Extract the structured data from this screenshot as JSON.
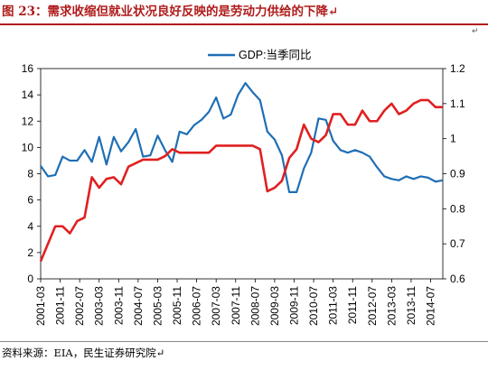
{
  "figure": {
    "title": "图 23：需求收缩但就业状况良好反映的是劳动力供给的下降↵",
    "corner_mark": "↵",
    "source_note": "资料来源：EIA，民生证券研究院↵"
  },
  "chart_data": {
    "type": "line",
    "title": "",
    "legend_position": "top-center",
    "grid": false,
    "x_tick_labels": [
      "2001-03",
      "2001-11",
      "2002-07",
      "2003-03",
      "2003-11",
      "2004-07",
      "2005-03",
      "2005-11",
      "2006-07",
      "2007-03",
      "2007-11",
      "2008-07",
      "2009-03",
      "2009-11",
      "2010-07",
      "2011-03",
      "2011-11",
      "2012-07",
      "2013-03",
      "2013-11",
      "2014-07"
    ],
    "x_tick_labels_shown": [
      "2001-03",
      "2001-11",
      "2002-07",
      "2003-03",
      "2003-11",
      "2004-07",
      "2005-03",
      "2005-11",
      "2006-07",
      "2007-03",
      "2007-11",
      "2008-07",
      "2009-03",
      "2009-11",
      "2010-07",
      "2011-03",
      "2011-11",
      "2012-07",
      "2013-03",
      "2013-11",
      "2014-07"
    ],
    "x": [
      "2001Q1",
      "2001Q2",
      "2001Q3",
      "2001Q4",
      "2002Q1",
      "2002Q2",
      "2002Q3",
      "2002Q4",
      "2003Q1",
      "2003Q2",
      "2003Q3",
      "2003Q4",
      "2004Q1",
      "2004Q2",
      "2004Q3",
      "2004Q4",
      "2005Q1",
      "2005Q2",
      "2005Q3",
      "2005Q4",
      "2006Q1",
      "2006Q2",
      "2006Q3",
      "2006Q4",
      "2007Q1",
      "2007Q2",
      "2007Q3",
      "2007Q4",
      "2008Q1",
      "2008Q2",
      "2008Q3",
      "2008Q4",
      "2009Q1",
      "2009Q2",
      "2009Q3",
      "2009Q4",
      "2010Q1",
      "2010Q2",
      "2010Q3",
      "2010Q4",
      "2011Q1",
      "2011Q2",
      "2011Q3",
      "2011Q4",
      "2012Q1",
      "2012Q2",
      "2012Q3",
      "2012Q4",
      "2013Q1",
      "2013Q2",
      "2013Q3",
      "2013Q4",
      "2014Q1",
      "2014Q2",
      "2014Q3",
      "2014Q4"
    ],
    "y_left": {
      "lim": [
        0,
        16
      ],
      "ticks": [
        0,
        2,
        4,
        6,
        8,
        10,
        12,
        14,
        16
      ]
    },
    "y_right": {
      "lim": [
        0.6,
        1.2
      ],
      "ticks": [
        "0.6",
        "0.7",
        "0.8",
        "0.9",
        "1",
        "1.1",
        "1.2"
      ],
      "tick_values": [
        0.6,
        0.7,
        0.8,
        0.9,
        1.0,
        1.1,
        1.2
      ]
    },
    "series": [
      {
        "name": "GDP:当季同比",
        "axis": "left",
        "color": "#1f6fb5",
        "values": [
          8.6,
          7.8,
          7.9,
          9.3,
          9.0,
          9.0,
          9.8,
          8.9,
          10.8,
          8.7,
          10.8,
          9.7,
          10.4,
          11.4,
          9.3,
          9.4,
          10.9,
          9.8,
          8.9,
          11.2,
          11.0,
          11.7,
          12.1,
          12.7,
          13.8,
          12.2,
          12.5,
          14.0,
          14.9,
          14.2,
          13.6,
          11.2,
          10.6,
          9.4,
          6.6,
          6.6,
          8.4,
          9.6,
          12.2,
          12.1,
          10.5,
          9.8,
          9.6,
          9.8,
          9.6,
          9.3,
          8.5,
          7.8,
          7.6,
          7.5,
          7.8,
          7.6,
          7.8,
          7.7,
          7.4,
          7.5
        ]
      },
      {
        "name": "",
        "axis": "right",
        "color": "#e02020",
        "values": [
          0.65,
          0.7,
          0.75,
          0.75,
          0.73,
          0.765,
          0.775,
          0.89,
          0.86,
          0.885,
          0.89,
          0.87,
          0.92,
          0.93,
          0.94,
          0.94,
          0.94,
          0.95,
          0.97,
          0.96,
          0.96,
          0.96,
          0.96,
          0.96,
          0.98,
          0.98,
          0.98,
          0.98,
          0.98,
          0.98,
          0.97,
          0.85,
          0.86,
          0.88,
          0.945,
          0.97,
          1.04,
          1.0,
          0.99,
          1.01,
          1.07,
          1.07,
          1.04,
          1.04,
          1.08,
          1.05,
          1.05,
          1.08,
          1.1,
          1.07,
          1.08,
          1.1,
          1.11,
          1.11,
          1.09,
          1.09
        ]
      }
    ]
  }
}
